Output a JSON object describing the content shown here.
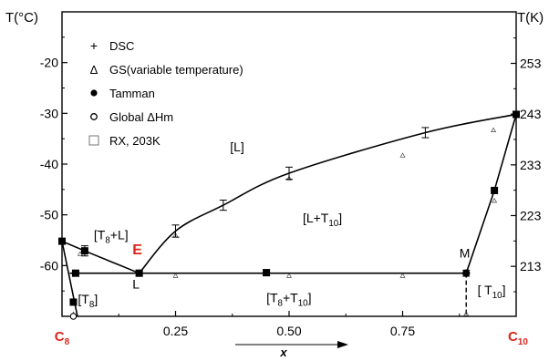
{
  "chart_data": {
    "type": "scatter",
    "y_left_label": "T(°C)",
    "y_right_label": "T(K)",
    "xlabel": "x",
    "xlim": [
      0,
      1
    ],
    "ylim": [
      -70,
      -10
    ],
    "y_left_ticks": [
      -20,
      -30,
      -40,
      -50,
      -60
    ],
    "y_right_ticks": [
      253,
      243,
      233,
      223,
      213
    ],
    "x_ticks": [
      {
        "value": 0.25,
        "label": "0.25"
      },
      {
        "value": 0.5,
        "label": "0.50"
      },
      {
        "value": 0.75,
        "label": "0.75"
      }
    ],
    "x_end_labels": {
      "left": "C",
      "left_sub": "8",
      "right": "C",
      "right_sub": "10"
    },
    "legend": [
      {
        "marker": "plus",
        "label": "DSC"
      },
      {
        "marker": "triangle",
        "label": "GS(variable temperature)"
      },
      {
        "marker": "filled-circle",
        "label": "Tamman"
      },
      {
        "marker": "open-circle",
        "label": "Global ΔHm"
      },
      {
        "marker": "open-square",
        "label": "RX, 203K"
      }
    ],
    "region_labels": [
      {
        "text": "[L]",
        "x": 0.37,
        "y": -37.5
      },
      {
        "text": "[L+T",
        "sub": "10",
        "tail": "]",
        "x": 0.53,
        "y": -51.5
      },
      {
        "text": "[T",
        "sub": "8",
        "tail": "+L]",
        "x": 0.07,
        "y": -54.8
      },
      {
        "text": "[T",
        "sub": "8",
        "tail": "]",
        "x": 0.035,
        "y": -67.5
      },
      {
        "text": "[T",
        "sub": "8",
        "mid": "+T",
        "sub2": "10",
        "tail": "]",
        "x": 0.45,
        "y": -67.2
      },
      {
        "text": "[ T",
        "sub": "10",
        "tail": "]",
        "x": 0.915,
        "y": -65.7
      }
    ],
    "point_labels": [
      {
        "text": "E",
        "x": 0.155,
        "y": -57.8,
        "color": "#d9261c"
      },
      {
        "text": "L",
        "x": 0.155,
        "y": -64.5
      },
      {
        "text": "M",
        "x": 0.875,
        "y": -58.4
      }
    ],
    "liquidus_left": [
      [
        0,
        -55.2
      ],
      [
        0.05,
        -57.1
      ],
      [
        0.17,
        -61.5
      ]
    ],
    "liquidus_right": [
      [
        0.17,
        -61.5
      ],
      [
        0.25,
        -53.2
      ],
      [
        0.355,
        -48.1
      ],
      [
        0.5,
        -41.8
      ],
      [
        0.8,
        -33.8
      ],
      [
        1.0,
        -30.2
      ]
    ],
    "t10_liquidus": [
      [
        0.89,
        -61.5
      ],
      [
        0.952,
        -45.2
      ],
      [
        1.0,
        -30.2
      ]
    ],
    "t8_solidus": [
      [
        0,
        -55.2
      ],
      [
        0.034,
        -70
      ]
    ],
    "eutectic_line": {
      "x": [
        0.017,
        0.89
      ],
      "y": -61.5
    },
    "peritectic_drop": {
      "x": 0.89,
      "y": [
        -61.5,
        -70
      ]
    },
    "filled_squares": [
      {
        "x": 0.0,
        "y": -55.2
      },
      {
        "x": 0.05,
        "y": -57.1
      },
      {
        "x": 0.03,
        "y": -61.5
      },
      {
        "x": 0.17,
        "y": -61.5
      },
      {
        "x": 0.45,
        "y": -61.4
      },
      {
        "x": 0.025,
        "y": -67.2
      },
      {
        "x": 0.952,
        "y": -45.2
      },
      {
        "x": 1.0,
        "y": -30.2
      }
    ],
    "filled_circles": [
      {
        "x": 0.89,
        "y": -61.5
      }
    ],
    "open_circles": [
      {
        "x": 0.025,
        "y": -70.0
      }
    ],
    "dsc_points": [
      {
        "x": 0.05,
        "y": -57.1,
        "err": 1.0
      },
      {
        "x": 0.17,
        "y": -61.5,
        "err": 0.6
      },
      {
        "x": 0.25,
        "y": -53.2,
        "err": 1.2
      },
      {
        "x": 0.355,
        "y": -48.1,
        "err": 1.0
      },
      {
        "x": 0.45,
        "y": -61.4,
        "err": 0.6
      },
      {
        "x": 0.5,
        "y": -41.8,
        "err": 1.2
      },
      {
        "x": 0.8,
        "y": -33.8,
        "err": 1.0
      },
      {
        "x": 0.89,
        "y": -61.5,
        "err": 0.6
      },
      {
        "x": 1.0,
        "y": -30.2,
        "err": 0.6
      }
    ],
    "gs_triangles": [
      {
        "x": 0.04,
        "y": -57.7
      },
      {
        "x": 0.25,
        "y": -62.0
      },
      {
        "x": 0.25,
        "y": -54.0
      },
      {
        "x": 0.5,
        "y": -62.0
      },
      {
        "x": 0.5,
        "y": -42.8
      },
      {
        "x": 0.75,
        "y": -62.0
      },
      {
        "x": 0.75,
        "y": -38.3
      },
      {
        "x": 0.95,
        "y": -33.3
      },
      {
        "x": 0.952,
        "y": -47.2
      },
      {
        "x": 0.89,
        "y": -69.5
      },
      {
        "x": 0.025,
        "y": -69.6
      }
    ]
  }
}
